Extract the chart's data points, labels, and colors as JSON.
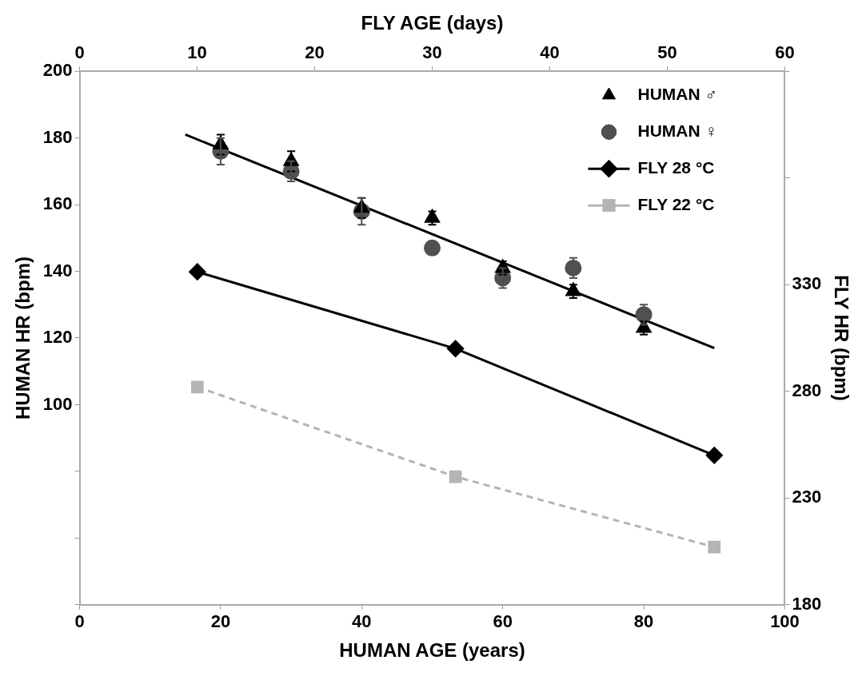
{
  "chart_data": {
    "type": "scatter",
    "xlabel": "HUMAN AGE (years)",
    "x2label": "FLY AGE (days)",
    "ylabel": "HUMAN HR (bpm)",
    "y2label": "FLY HR (bpm)",
    "xlim": [
      0,
      100
    ],
    "xticks": [
      0,
      20,
      40,
      60,
      80,
      100
    ],
    "x2lim": [
      0,
      60
    ],
    "x2ticks": [
      0,
      10,
      20,
      30,
      40,
      50,
      60
    ],
    "ylim": [
      40,
      200
    ],
    "yticks": [
      {
        "value": 40,
        "label": null
      },
      {
        "value": 60,
        "label": null
      },
      {
        "value": 80,
        "label": null
      },
      100,
      120,
      140,
      160,
      180,
      200
    ],
    "y2lim": [
      180,
      430
    ],
    "y2ticks": [
      180,
      230,
      280,
      330,
      {
        "value": 380,
        "label": null
      },
      {
        "value": 430,
        "label": null
      }
    ],
    "grid": false,
    "legend": "top right",
    "series": [
      {
        "name": "HUMAN ♂",
        "type": "scatter",
        "marker": "triangle",
        "color": "#000000",
        "x": [
          20,
          30,
          40,
          50,
          60,
          70,
          80
        ],
        "values": [
          178,
          173,
          159,
          156,
          141,
          134,
          123
        ],
        "errors": [
          3,
          3,
          3,
          2,
          2,
          2,
          2
        ]
      },
      {
        "name": "HUMAN ♀",
        "type": "scatter",
        "marker": "circle",
        "color": "#505050",
        "x": [
          20,
          30,
          40,
          50,
          60,
          70,
          80
        ],
        "values": [
          176,
          170,
          158,
          147,
          138,
          141,
          127
        ],
        "errors": [
          4,
          3,
          4,
          2,
          3,
          3,
          3
        ]
      },
      {
        "name": "FLY 28 °C",
        "type": "line",
        "marker": "diamond",
        "line_style": "solid",
        "color": "#000000",
        "axis": "y2",
        "x": [
          16.7,
          53.3,
          90
        ],
        "values": [
          336,
          300,
          250
        ]
      },
      {
        "name": "FLY 22 °C",
        "type": "line",
        "marker": "square",
        "line_style": "dashed",
        "color": "#b4b4b4",
        "axis": "y2",
        "x": [
          16.7,
          53.3,
          90
        ],
        "values": [
          282,
          240,
          207
        ]
      },
      {
        "type": "line",
        "marker": "none",
        "line_style": "solid",
        "color": "#000000",
        "x": [
          15,
          90
        ],
        "values": [
          181,
          117
        ]
      }
    ]
  }
}
